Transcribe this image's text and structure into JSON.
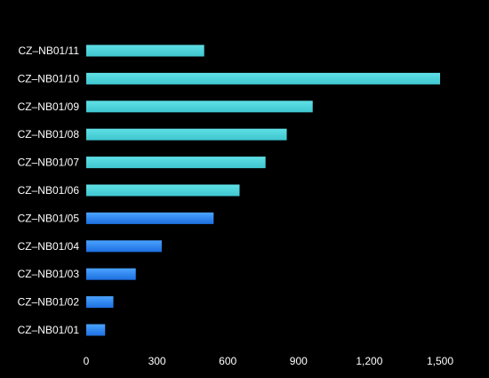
{
  "chart_data": {
    "type": "bar",
    "orientation": "horizontal",
    "categories": [
      "CZ–NB01/01",
      "CZ–NB01/02",
      "CZ–NB01/03",
      "CZ–NB01/04",
      "CZ–NB01/05",
      "CZ–NB01/06",
      "CZ–NB01/07",
      "CZ–NB01/08",
      "CZ–NB01/09",
      "CZ–NB01/10",
      "CZ–NB01/11"
    ],
    "values": [
      80,
      115,
      210,
      320,
      540,
      650,
      760,
      850,
      960,
      1500,
      500
    ],
    "xlim": [
      0,
      1500
    ],
    "xticks": [
      0,
      300,
      600,
      900,
      1200,
      1500
    ],
    "xtick_labels": [
      "0",
      "300",
      "600",
      "900",
      "1,200",
      "1,500"
    ],
    "title": "",
    "xlabel": "",
    "ylabel": "",
    "grid": false,
    "colors": {
      "background": "#000000",
      "label_text": "#ffffff",
      "cyan_top": "#5fe0e6",
      "cyan_bottom": "#3fc6cf",
      "blue_top": "#4aa3ff",
      "blue_bottom": "#1d6fe0"
    }
  }
}
